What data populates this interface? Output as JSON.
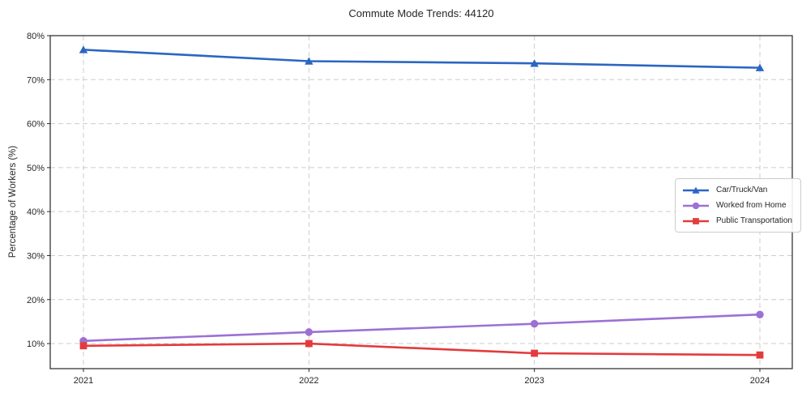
{
  "chart_data": {
    "type": "line",
    "title": "Commute Mode Trends: 44120",
    "xlabel": "",
    "ylabel": "Percentage of Workers (%)",
    "categories": [
      "2021",
      "2022",
      "2023",
      "2024"
    ],
    "series": [
      {
        "name": "Car/Truck/Van",
        "color": "#2b66c2",
        "marker": "triangle",
        "values": [
          76.8,
          74.2,
          73.7,
          72.7
        ]
      },
      {
        "name": "Worked from Home",
        "color": "#9c71d3",
        "marker": "circle",
        "values": [
          10.6,
          12.6,
          14.5,
          16.6
        ]
      },
      {
        "name": "Public Transportation",
        "color": "#e33b3d",
        "marker": "square",
        "values": [
          9.5,
          10.0,
          7.8,
          7.4
        ]
      }
    ],
    "ylim": [
      4.3,
      80
    ],
    "yticks": [
      10,
      20,
      30,
      40,
      50,
      60,
      70,
      80
    ],
    "ytick_suffix": "%",
    "grid": true,
    "grid_style": "dashed",
    "grid_color": "#cccccc",
    "axis_color": "#262626",
    "text_color": "#262626",
    "background_color": "#ffffff",
    "legend_position": "center-right"
  }
}
